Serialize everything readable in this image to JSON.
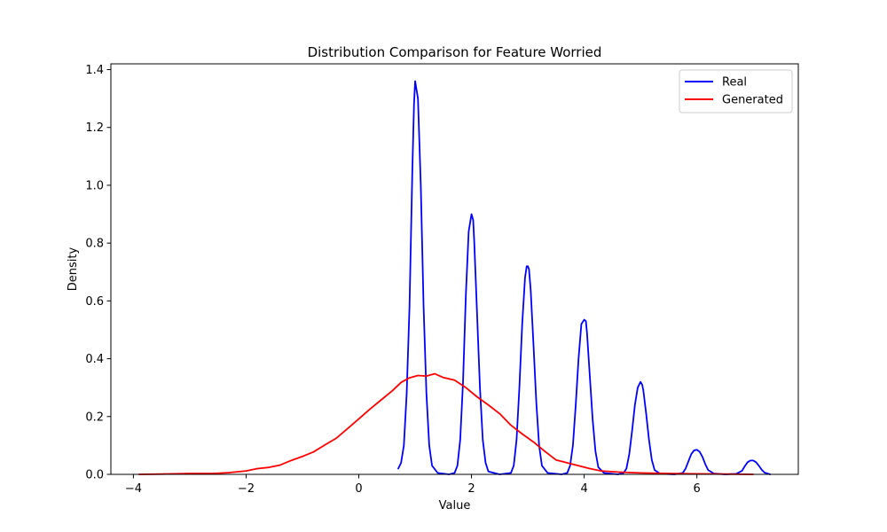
{
  "chart_data": {
    "type": "line",
    "title": "Distribution Comparison for Feature Worried",
    "xlabel": "Value",
    "ylabel": "Density",
    "xlim": [
      -4.4,
      7.8
    ],
    "ylim": [
      0,
      1.42
    ],
    "xticks": [
      -4,
      -2,
      0,
      2,
      4,
      6
    ],
    "xtick_labels": [
      "−4",
      "−2",
      "0",
      "2",
      "4",
      "6"
    ],
    "yticks": [
      0.0,
      0.2,
      0.4,
      0.6,
      0.8,
      1.0,
      1.2,
      1.4
    ],
    "ytick_labels": [
      "0.0",
      "0.2",
      "0.4",
      "0.6",
      "0.8",
      "1.0",
      "1.2",
      "1.4"
    ],
    "grid": false,
    "legend": {
      "position": "top-right",
      "entries": [
        "Real",
        "Generated"
      ]
    },
    "series": [
      {
        "name": "Real",
        "color": "#0000ff",
        "points": [
          [
            0.7,
            0.02
          ],
          [
            0.75,
            0.04
          ],
          [
            0.8,
            0.1
          ],
          [
            0.85,
            0.28
          ],
          [
            0.9,
            0.58
          ],
          [
            0.95,
            1.05
          ],
          [
            0.98,
            1.28
          ],
          [
            1.0,
            1.36
          ],
          [
            1.05,
            1.3
          ],
          [
            1.1,
            1.0
          ],
          [
            1.15,
            0.58
          ],
          [
            1.2,
            0.28
          ],
          [
            1.25,
            0.1
          ],
          [
            1.3,
            0.03
          ],
          [
            1.4,
            0.005
          ],
          [
            1.6,
            0.0
          ],
          [
            1.7,
            0.005
          ],
          [
            1.75,
            0.03
          ],
          [
            1.8,
            0.12
          ],
          [
            1.85,
            0.32
          ],
          [
            1.9,
            0.62
          ],
          [
            1.95,
            0.84
          ],
          [
            2.0,
            0.9
          ],
          [
            2.03,
            0.88
          ],
          [
            2.05,
            0.8
          ],
          [
            2.1,
            0.55
          ],
          [
            2.15,
            0.3
          ],
          [
            2.2,
            0.12
          ],
          [
            2.25,
            0.04
          ],
          [
            2.3,
            0.01
          ],
          [
            2.5,
            0.0
          ],
          [
            2.7,
            0.005
          ],
          [
            2.75,
            0.03
          ],
          [
            2.8,
            0.12
          ],
          [
            2.85,
            0.3
          ],
          [
            2.9,
            0.52
          ],
          [
            2.95,
            0.68
          ],
          [
            2.98,
            0.72
          ],
          [
            3.0,
            0.72
          ],
          [
            3.02,
            0.71
          ],
          [
            3.05,
            0.64
          ],
          [
            3.1,
            0.45
          ],
          [
            3.15,
            0.25
          ],
          [
            3.2,
            0.1
          ],
          [
            3.25,
            0.03
          ],
          [
            3.35,
            0.005
          ],
          [
            3.6,
            0.0
          ],
          [
            3.7,
            0.005
          ],
          [
            3.75,
            0.03
          ],
          [
            3.8,
            0.1
          ],
          [
            3.85,
            0.24
          ],
          [
            3.9,
            0.4
          ],
          [
            3.95,
            0.52
          ],
          [
            4.0,
            0.535
          ],
          [
            4.03,
            0.53
          ],
          [
            4.05,
            0.49
          ],
          [
            4.1,
            0.34
          ],
          [
            4.15,
            0.19
          ],
          [
            4.2,
            0.08
          ],
          [
            4.25,
            0.025
          ],
          [
            4.35,
            0.005
          ],
          [
            4.6,
            0.0
          ],
          [
            4.7,
            0.005
          ],
          [
            4.75,
            0.02
          ],
          [
            4.8,
            0.07
          ],
          [
            4.85,
            0.15
          ],
          [
            4.9,
            0.24
          ],
          [
            4.95,
            0.3
          ],
          [
            5.0,
            0.32
          ],
          [
            5.03,
            0.31
          ],
          [
            5.05,
            0.29
          ],
          [
            5.1,
            0.21
          ],
          [
            5.15,
            0.12
          ],
          [
            5.2,
            0.05
          ],
          [
            5.25,
            0.015
          ],
          [
            5.35,
            0.002
          ],
          [
            5.6,
            0.0
          ],
          [
            5.75,
            0.005
          ],
          [
            5.8,
            0.02
          ],
          [
            5.85,
            0.045
          ],
          [
            5.9,
            0.07
          ],
          [
            5.95,
            0.083
          ],
          [
            6.0,
            0.085
          ],
          [
            6.05,
            0.078
          ],
          [
            6.1,
            0.06
          ],
          [
            6.15,
            0.035
          ],
          [
            6.2,
            0.015
          ],
          [
            6.3,
            0.003
          ],
          [
            6.5,
            0.0
          ],
          [
            6.7,
            0.002
          ],
          [
            6.8,
            0.012
          ],
          [
            6.85,
            0.028
          ],
          [
            6.9,
            0.042
          ],
          [
            6.95,
            0.048
          ],
          [
            7.0,
            0.048
          ],
          [
            7.05,
            0.042
          ],
          [
            7.1,
            0.03
          ],
          [
            7.15,
            0.016
          ],
          [
            7.2,
            0.006
          ],
          [
            7.3,
            0.0
          ]
        ]
      },
      {
        "name": "Generated",
        "color": "#ff0000",
        "points": [
          [
            -3.9,
            0.0
          ],
          [
            -3.5,
            0.001
          ],
          [
            -3.0,
            0.003
          ],
          [
            -2.6,
            0.003
          ],
          [
            -2.3,
            0.006
          ],
          [
            -2.0,
            0.012
          ],
          [
            -1.8,
            0.02
          ],
          [
            -1.6,
            0.024
          ],
          [
            -1.4,
            0.032
          ],
          [
            -1.2,
            0.048
          ],
          [
            -1.0,
            0.062
          ],
          [
            -0.8,
            0.078
          ],
          [
            -0.6,
            0.102
          ],
          [
            -0.4,
            0.125
          ],
          [
            -0.2,
            0.158
          ],
          [
            0.0,
            0.192
          ],
          [
            0.2,
            0.226
          ],
          [
            0.4,
            0.258
          ],
          [
            0.6,
            0.29
          ],
          [
            0.75,
            0.318
          ],
          [
            0.9,
            0.334
          ],
          [
            1.05,
            0.342
          ],
          [
            1.2,
            0.34
          ],
          [
            1.35,
            0.348
          ],
          [
            1.5,
            0.335
          ],
          [
            1.7,
            0.326
          ],
          [
            1.9,
            0.3
          ],
          [
            2.1,
            0.268
          ],
          [
            2.3,
            0.24
          ],
          [
            2.5,
            0.21
          ],
          [
            2.7,
            0.17
          ],
          [
            2.9,
            0.14
          ],
          [
            3.1,
            0.112
          ],
          [
            3.3,
            0.08
          ],
          [
            3.5,
            0.05
          ],
          [
            3.7,
            0.04
          ],
          [
            3.9,
            0.03
          ],
          [
            4.1,
            0.02
          ],
          [
            4.3,
            0.012
          ],
          [
            4.6,
            0.008
          ],
          [
            5.0,
            0.005
          ],
          [
            5.5,
            0.003
          ],
          [
            6.0,
            0.002
          ],
          [
            6.5,
            0.001
          ],
          [
            7.0,
            0.0
          ]
        ]
      }
    ]
  }
}
